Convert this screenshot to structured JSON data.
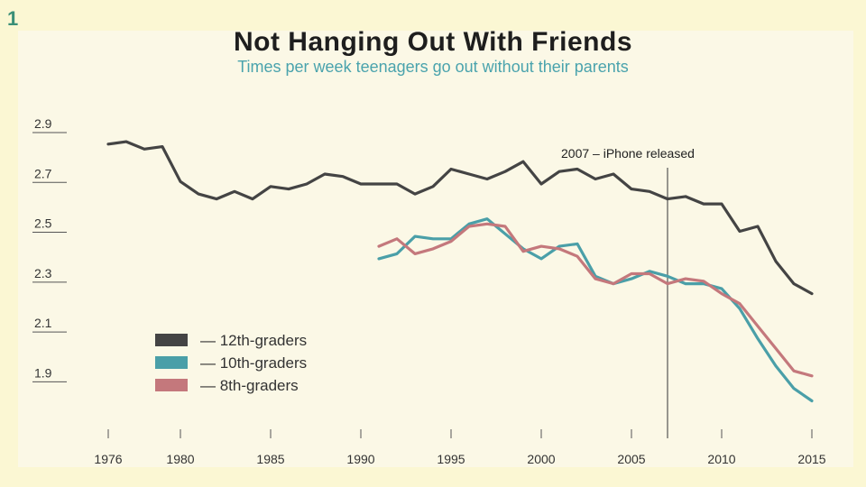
{
  "slide_number": "1",
  "chart_data": {
    "type": "line",
    "title": "Not Hanging Out With Friends",
    "subtitle": "Times per week teenagers go out without their parents",
    "xlabel": "",
    "ylabel": "",
    "xlim": [
      1976,
      2015
    ],
    "ylim": [
      1.8,
      2.95
    ],
    "x_ticks": [
      1976,
      1980,
      1985,
      1990,
      1995,
      2000,
      2005,
      2010,
      2015
    ],
    "y_ticks": [
      2.9,
      2.7,
      2.5,
      2.3,
      2.1,
      1.9
    ],
    "grid": false,
    "legend_position": "bottom-left",
    "annotation": {
      "x": 2007,
      "text": "2007 – iPhone released"
    },
    "series": [
      {
        "name": "12th-graders",
        "color": "#444444",
        "x": [
          1976,
          1977,
          1978,
          1979,
          1980,
          1981,
          1982,
          1983,
          1984,
          1985,
          1986,
          1987,
          1988,
          1989,
          1990,
          1991,
          1992,
          1993,
          1994,
          1995,
          1996,
          1997,
          1998,
          1999,
          2000,
          2001,
          2002,
          2003,
          2004,
          2005,
          2006,
          2007,
          2008,
          2009,
          2010,
          2011,
          2012,
          2013,
          2014,
          2015
        ],
        "values": [
          2.85,
          2.86,
          2.83,
          2.84,
          2.7,
          2.65,
          2.63,
          2.66,
          2.63,
          2.68,
          2.67,
          2.69,
          2.73,
          2.72,
          2.69,
          2.69,
          2.69,
          2.65,
          2.68,
          2.75,
          2.73,
          2.71,
          2.74,
          2.78,
          2.69,
          2.74,
          2.75,
          2.71,
          2.73,
          2.67,
          2.66,
          2.63,
          2.64,
          2.61,
          2.61,
          2.5,
          2.52,
          2.38,
          2.29,
          2.25
        ]
      },
      {
        "name": "10th-graders",
        "color": "#4a9fa8",
        "x": [
          1991,
          1992,
          1993,
          1994,
          1995,
          1996,
          1997,
          1998,
          1999,
          2000,
          2001,
          2002,
          2003,
          2004,
          2005,
          2006,
          2007,
          2008,
          2009,
          2010,
          2011,
          2012,
          2013,
          2014,
          2015
        ],
        "values": [
          2.39,
          2.41,
          2.48,
          2.47,
          2.47,
          2.53,
          2.55,
          2.49,
          2.43,
          2.39,
          2.44,
          2.45,
          2.32,
          2.29,
          2.31,
          2.34,
          2.32,
          2.29,
          2.29,
          2.27,
          2.19,
          2.07,
          1.96,
          1.87,
          1.82
        ]
      },
      {
        "name": "8th-graders",
        "color": "#c4787c",
        "x": [
          1991,
          1992,
          1993,
          1994,
          1995,
          1996,
          1997,
          1998,
          1999,
          2000,
          2001,
          2002,
          2003,
          2004,
          2005,
          2006,
          2007,
          2008,
          2009,
          2010,
          2011,
          2012,
          2013,
          2014,
          2015
        ],
        "values": [
          2.44,
          2.47,
          2.41,
          2.43,
          2.46,
          2.52,
          2.53,
          2.52,
          2.42,
          2.44,
          2.43,
          2.4,
          2.31,
          2.29,
          2.33,
          2.33,
          2.29,
          2.31,
          2.3,
          2.25,
          2.21,
          2.12,
          2.03,
          1.94,
          1.92
        ]
      }
    ]
  }
}
